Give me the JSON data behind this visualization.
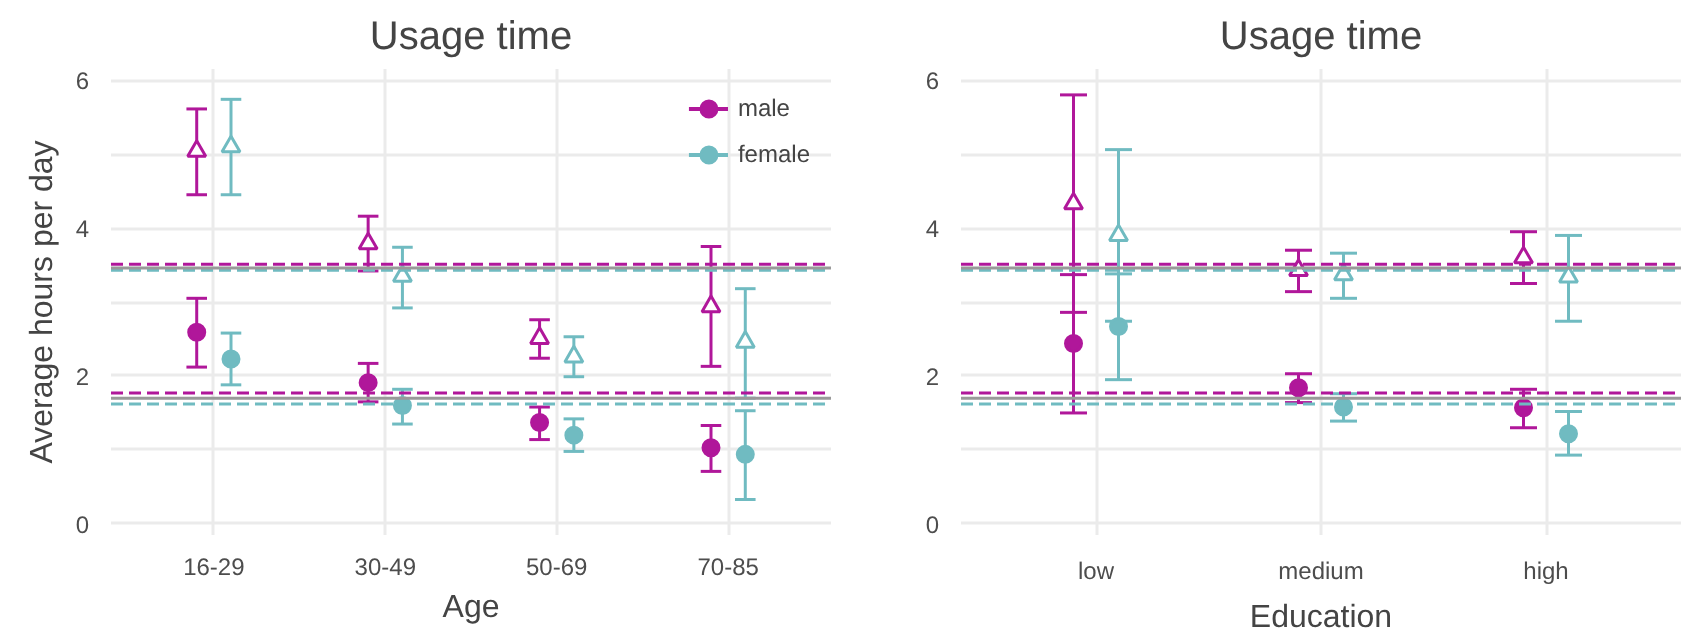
{
  "chart_data": [
    {
      "type": "scatter",
      "title": "Usage time",
      "xlabel": "Age",
      "ylabel": "Average hours per day",
      "categories": [
        "16-29",
        "30-49",
        "50-69",
        "70-85"
      ],
      "ylim": [
        -0.15,
        6.15
      ],
      "yticks": [
        0,
        {
          "value": 1,
          "label": null
        },
        2,
        {
          "value": 3,
          "label": null
        },
        4,
        {
          "value": 5,
          "label": null
        },
        6
      ],
      "grid": true,
      "legend": "top right",
      "series": [
        {
          "color": "#b0179a",
          "marker": "triangle",
          "values": [
            5.04,
            3.79,
            2.51,
            2.94
          ],
          "errors": [
            [
              4.45,
              5.61
            ],
            [
              3.42,
              4.16
            ],
            [
              2.24,
              2.76
            ],
            [
              2.13,
              3.75
            ]
          ]
        },
        {
          "color": "#70bbc1",
          "marker": "triangle",
          "values": [
            5.1,
            3.35,
            2.26,
            2.46
          ],
          "errors": [
            [
              4.45,
              5.74
            ],
            [
              2.92,
              3.74
            ],
            [
              1.99,
              2.53
            ],
            [
              1.7,
              3.18
            ]
          ]
        },
        {
          "name": "male",
          "color": "#b0179a",
          "marker": "circle",
          "values": [
            2.59,
            1.91,
            1.37,
            1.03
          ],
          "errors": [
            [
              2.12,
              3.05
            ],
            [
              1.65,
              2.17
            ],
            [
              1.14,
              1.58
            ],
            [
              0.71,
              1.33
            ]
          ]
        },
        {
          "name": "female",
          "color": "#70bbc1",
          "marker": "circle",
          "values": [
            2.23,
            1.6,
            1.2,
            0.94
          ],
          "errors": [
            [
              1.88,
              2.58
            ],
            [
              1.35,
              1.82
            ],
            [
              0.98,
              1.42
            ],
            [
              0.33,
              1.53
            ]
          ]
        }
      ],
      "ref_lines": [
        {
          "axis": "y",
          "value": 3.51,
          "color": "#b0179a",
          "line_style": "dashed"
        },
        {
          "axis": "y",
          "value": 3.43,
          "color": "#70bbc1",
          "line_style": "dashed"
        },
        {
          "axis": "y",
          "value": 3.46,
          "color": "#999999",
          "line_style": "solid"
        },
        {
          "axis": "y",
          "value": 1.77,
          "color": "#b0179a",
          "line_style": "dashed"
        },
        {
          "axis": "y",
          "value": 1.62,
          "color": "#70bbc1",
          "line_style": "dashed"
        },
        {
          "axis": "y",
          "value": 1.7,
          "color": "#999999",
          "line_style": "solid"
        }
      ]
    },
    {
      "type": "scatter",
      "title": "Usage time",
      "xlabel": "Education",
      "categories": [
        "low",
        "medium",
        "high"
      ],
      "ylim": [
        -0.15,
        6.15
      ],
      "yticks": [
        0,
        {
          "value": 1,
          "label": null
        },
        2,
        {
          "value": 3,
          "label": null
        },
        4,
        {
          "value": 5,
          "label": null
        },
        6
      ],
      "grid": true,
      "series": [
        {
          "color": "#b0179a",
          "marker": "triangle",
          "values": [
            4.33,
            3.43,
            3.6
          ],
          "errors": [
            [
              2.86,
              5.8
            ],
            [
              3.14,
              3.7
            ],
            [
              3.25,
              3.95
            ]
          ]
        },
        {
          "color": "#70bbc1",
          "marker": "triangle",
          "values": [
            3.9,
            3.37,
            3.34
          ],
          "errors": [
            [
              2.74,
              5.06
            ],
            [
              3.05,
              3.66
            ],
            [
              2.74,
              3.9
            ]
          ]
        },
        {
          "color": "#b0179a",
          "marker": "circle",
          "values": [
            2.44,
            1.84,
            1.57
          ],
          "errors": [
            [
              1.5,
              3.37
            ],
            [
              1.64,
              2.03
            ],
            [
              1.3,
              1.82
            ]
          ]
        },
        {
          "color": "#70bbc1",
          "marker": "circle",
          "values": [
            2.67,
            1.58,
            1.22
          ],
          "errors": [
            [
              1.95,
              3.38
            ],
            [
              1.39,
              1.76
            ],
            [
              0.93,
              1.52
            ]
          ]
        }
      ],
      "ref_lines": [
        {
          "axis": "y",
          "value": 3.51,
          "color": "#b0179a",
          "line_style": "dashed"
        },
        {
          "axis": "y",
          "value": 3.43,
          "color": "#70bbc1",
          "line_style": "dashed"
        },
        {
          "axis": "y",
          "value": 3.46,
          "color": "#999999",
          "line_style": "solid"
        },
        {
          "axis": "y",
          "value": 1.77,
          "color": "#b0179a",
          "line_style": "dashed"
        },
        {
          "axis": "y",
          "value": 1.62,
          "color": "#70bbc1",
          "line_style": "dashed"
        },
        {
          "axis": "y",
          "value": 1.7,
          "color": "#999999",
          "line_style": "solid"
        }
      ]
    }
  ]
}
